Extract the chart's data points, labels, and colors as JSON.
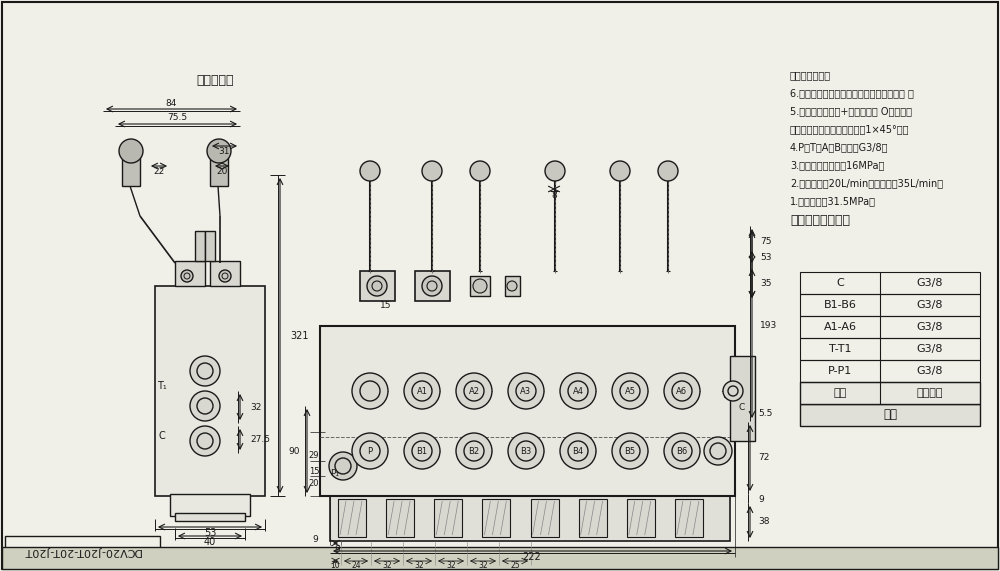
{
  "title": "DCV20-J20T-20T-J20T",
  "bg_color": "#f0f0e8",
  "line_color": "#1a1a1a",
  "fig_width": 10.0,
  "fig_height": 5.71,
  "table_title": "阀体",
  "table_headers": [
    "接口",
    "螺纹规格"
  ],
  "table_rows": [
    [
      "P-P1",
      "G3/8"
    ],
    [
      "T-T1",
      "G3/8"
    ],
    [
      "A1-A6",
      "G3/8"
    ],
    [
      "B1-B6",
      "G3/8"
    ],
    [
      "C",
      "G3/8"
    ]
  ],
  "tech_title": "技术要求及参数：",
  "tech_lines": [
    "1.额定压力：31.5MPa；",
    "2.额定流量：20L/min，最大流量35L/min；",
    "3.安装阀调定压力：16MPa；",
    "4.P、T、A、B口均为G3/8，",
    "均为平面密封，螺纹孔口倒角1×45°角。",
    "5.控制方式：手动+弹簧复位， O型阀杆；",
    "6.阀体表面磷化处理，安全阀及螺堡镀锤， 支",
    "架后盖为铝本色"
  ],
  "caption": "液压原理图"
}
